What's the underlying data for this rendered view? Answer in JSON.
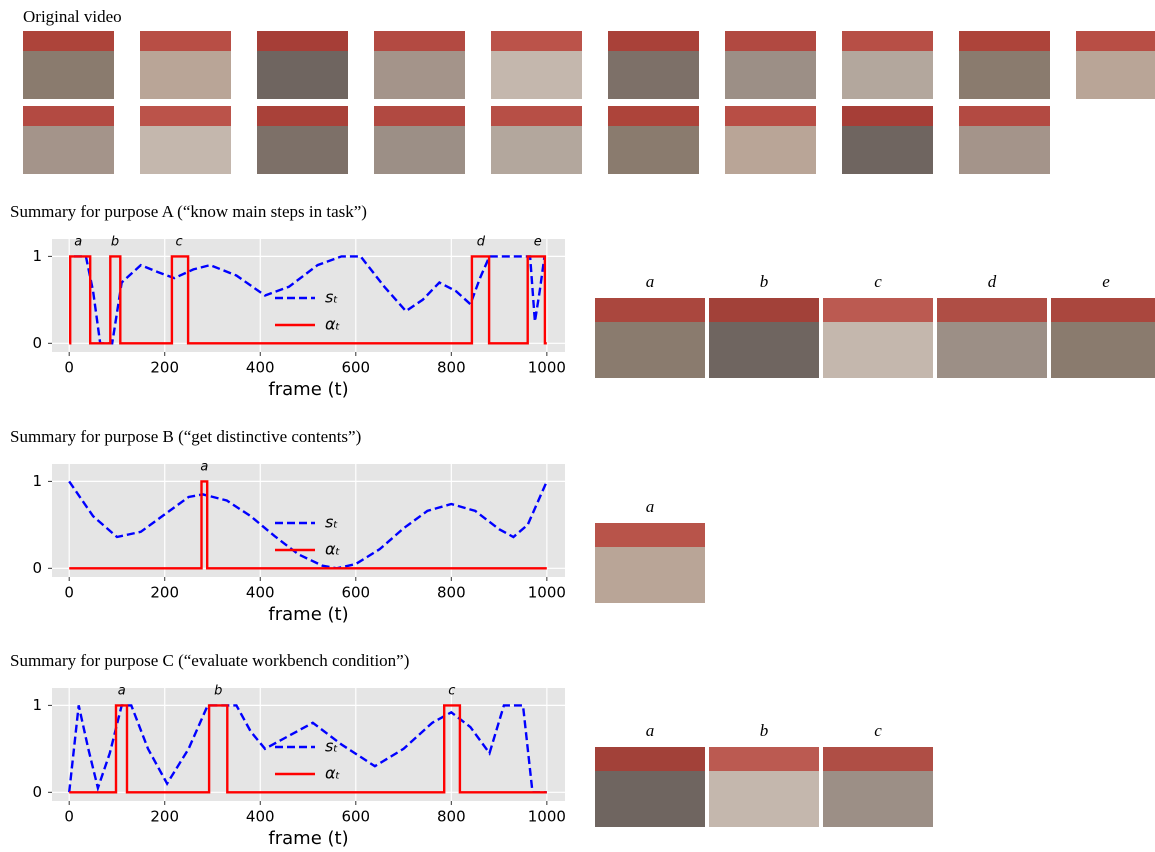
{
  "video": {
    "title": "Original video"
  },
  "sections": [
    {
      "title": "Summary for purpose A (“know main steps in task”)",
      "thumb_labels": [
        "a",
        "b",
        "c",
        "d",
        "e"
      ]
    },
    {
      "title": "Summary for purpose B (“get distinctive contents”)",
      "thumb_labels": [
        "a"
      ]
    },
    {
      "title": "Summary for purpose C (“evaluate workbench condition”)",
      "thumb_labels": [
        "a",
        "b",
        "c"
      ]
    }
  ],
  "chart_data": [
    {
      "type": "line",
      "xlabel": "frame (t)",
      "xlim": [
        -36,
        1038
      ],
      "ylim": [
        -0.1,
        1.2
      ],
      "xticks": [
        0,
        200,
        400,
        600,
        800,
        1000
      ],
      "yticks": [
        0,
        1
      ],
      "grid": true,
      "legend": "center",
      "annotations": [
        {
          "label": "a",
          "x": 19
        },
        {
          "label": "b",
          "x": 96
        },
        {
          "label": "c",
          "x": 230
        },
        {
          "label": "d",
          "x": 862
        },
        {
          "label": "e",
          "x": 981
        }
      ],
      "series": [
        {
          "name": "sₜ",
          "color": "#0000ff",
          "style": "dashed",
          "x": [
            10,
            35,
            50,
            65,
            90,
            110,
            150,
            185,
            220,
            260,
            295,
            350,
            410,
            460,
            520,
            570,
            610,
            660,
            705,
            740,
            775,
            810,
            840,
            860,
            880,
            965,
            975,
            985,
            995
          ],
          "values": [
            1,
            1,
            0.6,
            0,
            0,
            0.7,
            0.9,
            0.82,
            0.75,
            0.85,
            0.9,
            0.78,
            0.55,
            0.65,
            0.9,
            1,
            1,
            0.65,
            0.37,
            0.5,
            0.7,
            0.6,
            0.45,
            0.75,
            1,
            1,
            0.25,
            0.6,
            1
          ]
        },
        {
          "name": "αₜ",
          "color": "#ff0000",
          "style": "solid",
          "x": [
            0,
            2,
            2,
            44,
            44,
            86,
            86,
            107,
            107,
            215,
            215,
            249,
            249,
            843,
            843,
            879,
            879,
            960,
            960,
            996,
            996,
            1000
          ],
          "values": [
            0,
            0,
            1,
            1,
            0,
            0,
            1,
            1,
            0,
            0,
            1,
            1,
            0,
            0,
            1,
            1,
            0,
            0,
            1,
            1,
            0,
            0
          ]
        }
      ]
    },
    {
      "type": "line",
      "xlabel": "frame (t)",
      "xlim": [
        -36,
        1038
      ],
      "ylim": [
        -0.1,
        1.2
      ],
      "xticks": [
        0,
        200,
        400,
        600,
        800,
        1000
      ],
      "yticks": [
        0,
        1
      ],
      "grid": true,
      "legend": "center",
      "annotations": [
        {
          "label": "a",
          "x": 283
        }
      ],
      "series": [
        {
          "name": "sₜ",
          "color": "#0000ff",
          "style": "dashed",
          "x": [
            0,
            50,
            100,
            150,
            200,
            250,
            280,
            330,
            380,
            430,
            480,
            530,
            560,
            600,
            650,
            700,
            750,
            800,
            850,
            900,
            930,
            960,
            1000
          ],
          "values": [
            1,
            0.6,
            0.36,
            0.42,
            0.62,
            0.82,
            0.85,
            0.78,
            0.6,
            0.37,
            0.16,
            0.03,
            0,
            0.05,
            0.22,
            0.46,
            0.66,
            0.74,
            0.66,
            0.45,
            0.36,
            0.5,
            1
          ]
        },
        {
          "name": "αₜ",
          "color": "#ff0000",
          "style": "solid",
          "x": [
            0,
            277,
            277,
            289,
            289,
            1000
          ],
          "values": [
            0,
            0,
            1,
            1,
            0,
            0
          ]
        }
      ]
    },
    {
      "type": "line",
      "xlabel": "frame (t)",
      "xlim": [
        -36,
        1038
      ],
      "ylim": [
        -0.1,
        1.2
      ],
      "xticks": [
        0,
        200,
        400,
        600,
        800,
        1000
      ],
      "yticks": [
        0,
        1
      ],
      "grid": true,
      "legend": "center",
      "annotations": [
        {
          "label": "a",
          "x": 110
        },
        {
          "label": "b",
          "x": 312
        },
        {
          "label": "c",
          "x": 801
        }
      ],
      "series": [
        {
          "name": "sₜ",
          "color": "#0000ff",
          "style": "dashed",
          "x": [
            0,
            20,
            40,
            60,
            85,
            110,
            130,
            165,
            205,
            250,
            290,
            350,
            380,
            410,
            460,
            510,
            570,
            640,
            700,
            760,
            800,
            840,
            880,
            910,
            950,
            970,
            1000
          ],
          "values": [
            0,
            1,
            0.5,
            0.05,
            0.45,
            1,
            1,
            0.5,
            0.1,
            0.5,
            1,
            1,
            0.7,
            0.5,
            0.65,
            0.8,
            0.55,
            0.3,
            0.5,
            0.8,
            0.92,
            0.75,
            0.45,
            1,
            1,
            0,
            0
          ]
        },
        {
          "name": "αₜ",
          "color": "#ff0000",
          "style": "solid",
          "x": [
            0,
            98,
            98,
            121,
            121,
            293,
            293,
            331,
            331,
            785,
            785,
            818,
            818,
            1000
          ],
          "values": [
            0,
            0,
            1,
            1,
            0,
            0,
            1,
            1,
            0,
            0,
            1,
            1,
            0,
            0
          ]
        }
      ]
    }
  ]
}
